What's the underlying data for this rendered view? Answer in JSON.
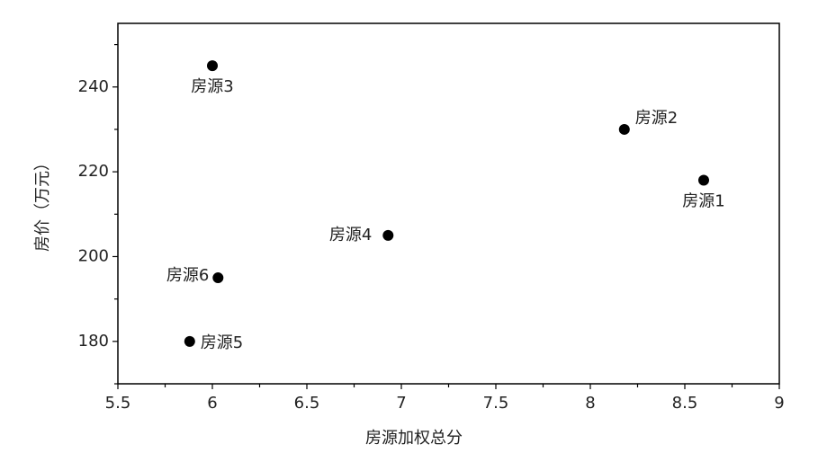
{
  "chart_data": {
    "type": "scatter",
    "x_label": "房源加权总分",
    "y_label": "房价（万元）",
    "x": [
      8.6,
      8.18,
      6.0,
      6.93,
      5.88,
      6.03
    ],
    "values": [
      218,
      230,
      245,
      205,
      180,
      195
    ],
    "labels": [
      "房源1",
      "房源2",
      "房源3",
      "房源4",
      "房源5",
      "房源6"
    ],
    "color": "#000000",
    "xlim": [
      5.5,
      9.0
    ],
    "xticks": [
      5.5,
      6.0,
      6.5,
      7.0,
      7.5,
      8.0,
      8.5,
      9.0
    ],
    "ylim": [
      170,
      255
    ],
    "yticks": [
      180,
      200,
      220,
      240
    ]
  }
}
